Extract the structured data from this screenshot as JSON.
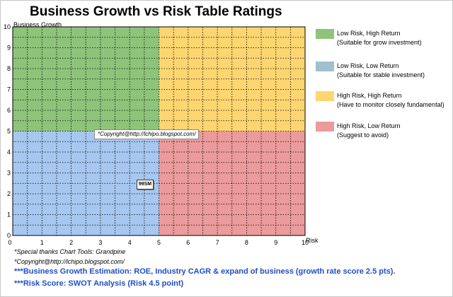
{
  "chart_data": {
    "type": "scatter",
    "title": "Business Growth vs Risk Table Ratings",
    "xlabel": "Risk",
    "ylabel": "Business Growth",
    "xlim": [
      0,
      10
    ],
    "ylim": [
      0,
      10
    ],
    "x_ticks": [
      "0",
      "1",
      "2",
      "3",
      "4",
      "5",
      "6",
      "7",
      "8",
      "9",
      "10"
    ],
    "y_ticks": [
      "0",
      "1",
      "2",
      "3",
      "4",
      "5",
      "6",
      "7",
      "8",
      "9",
      "10"
    ],
    "grid": true,
    "quadrants": [
      {
        "name": "Low Risk, High Return",
        "note": "(Suitable for grow investment)",
        "color": "#8dc47a",
        "x_range": [
          0,
          5
        ],
        "y_range": [
          5,
          10
        ]
      },
      {
        "name": "Low Risk, Low Return",
        "note": "(Suitable for stable investment)",
        "color": "#a6c7ef",
        "x_range": [
          0,
          5
        ],
        "y_range": [
          0,
          5
        ]
      },
      {
        "name": "High Risk, High Return",
        "note": "(Have to monitor closely  fundamental)",
        "color": "#fdd671",
        "x_range": [
          5,
          10
        ],
        "y_range": [
          5,
          10
        ]
      },
      {
        "name": "High Risk, Low Return",
        "note": "(Suggest to avoid)",
        "color": "#eb9b9b",
        "x_range": [
          5,
          10
        ],
        "y_range": [
          0,
          5
        ]
      }
    ],
    "points": [
      {
        "label": "99SM",
        "x": 4.5,
        "y": 2.5
      }
    ],
    "legend_position": "right",
    "annotations": [
      "*Copyright@http://lchipo.blogspot.com/"
    ]
  },
  "legend_swatches": [
    "#8dc47a",
    "#9fc1cc",
    "#fdd671",
    "#eb9b9b"
  ],
  "notes": {
    "thanks": "*Special thanks Chart Tools: Grandpine",
    "copyright": "*Copyright@http://lchipo.blogspot.com/"
  },
  "formulas": {
    "growth": "***Business Growth Estimation: ROE, Industry CAGR & expand of business (growth rate score 2.5 pts).",
    "risk": "***Risk Score: SWOT Analysis (Risk 4.5 point)"
  }
}
